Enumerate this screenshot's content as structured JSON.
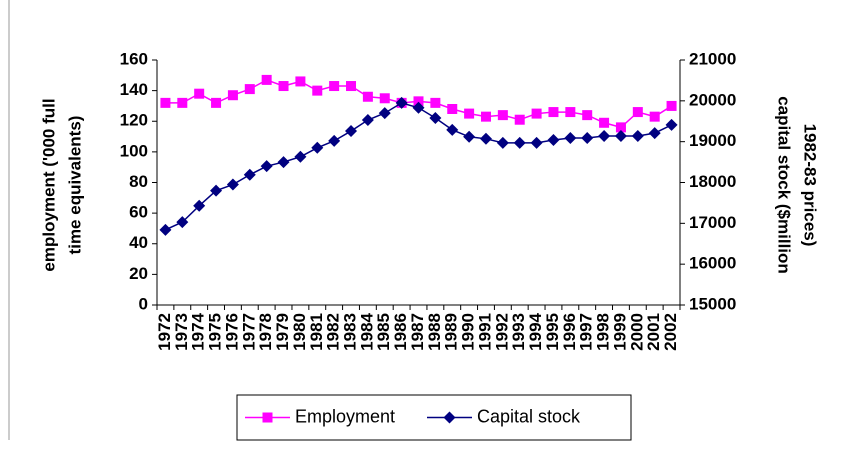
{
  "chart_data": {
    "type": "line",
    "ylabel": [
      "employment ('000 full",
      "time equivalents)"
    ],
    "y2label": [
      "capital stock ($million",
      "1982-83 prices)"
    ],
    "categories": [
      "1972",
      "1973",
      "1974",
      "1975",
      "1976",
      "1977",
      "1978",
      "1979",
      "1980",
      "1981",
      "1982",
      "1983",
      "1984",
      "1985",
      "1986",
      "1987",
      "1988",
      "1989",
      "1990",
      "1991",
      "1992",
      "1993",
      "1994",
      "1995",
      "1996",
      "1997",
      "1998",
      "1999",
      "2000",
      "2001",
      "2002"
    ],
    "series": [
      {
        "name": "Employment",
        "color": "#ff00ff",
        "marker": "square",
        "values": [
          132,
          132,
          138,
          132,
          137,
          141,
          147,
          143,
          146,
          140,
          143,
          143,
          136,
          135,
          132,
          133,
          132,
          128,
          125,
          123,
          124,
          121,
          125,
          126,
          126,
          124,
          119,
          116,
          126,
          123,
          130
        ]
      },
      {
        "name": "Capital stock",
        "color": "#000080",
        "marker": "diamond",
        "axis": "y2",
        "values": [
          16840,
          17030,
          17430,
          17800,
          17950,
          18190,
          18400,
          18500,
          18630,
          18850,
          19020,
          19260,
          19530,
          19700,
          19950,
          19830,
          19580,
          19290,
          19120,
          19070,
          18970,
          18970,
          18970,
          19040,
          19090,
          19090,
          19140,
          19140,
          19140,
          19210,
          19410
        ]
      }
    ],
    "ylim": [
      0,
      160
    ],
    "yticks": [
      0,
      20,
      40,
      60,
      80,
      100,
      120,
      140,
      160
    ],
    "y2lim": [
      15000,
      21000
    ],
    "y2ticks": [
      15000,
      16000,
      17000,
      18000,
      19000,
      20000,
      21000
    ],
    "grid": false,
    "legend": "bottom"
  }
}
